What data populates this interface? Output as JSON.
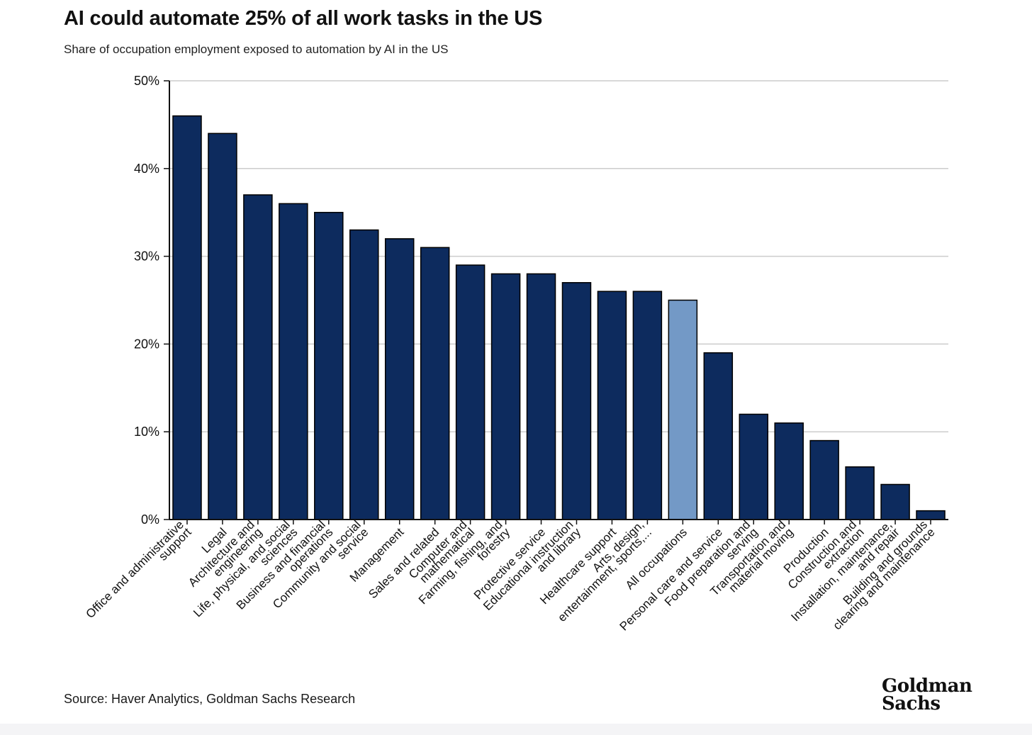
{
  "colors": {
    "bar": "#0d2b5e",
    "highlight": "#7399c6",
    "grid": "#cccccc",
    "axis": "#111111"
  },
  "source": "Source: Haver Analytics, Goldman Sachs Research",
  "logo": {
    "line1": "Goldman",
    "line2": "Sachs"
  },
  "chart_data": {
    "type": "bar",
    "title": "AI could automate 25% of all work tasks in the US",
    "subtitle": "Share of occupation employment exposed to automation by AI in the US",
    "xlabel": "",
    "ylabel": "",
    "ylim": [
      0,
      50
    ],
    "yticks": [
      0,
      10,
      20,
      30,
      40,
      50
    ],
    "ytick_suffix": "%",
    "grid": true,
    "highlight_category": "All occupations",
    "categories": [
      "Office and administrative support",
      "Legal",
      "Architecture and engineering",
      "Life, physical, and social sciences",
      "Business and financial operations",
      "Community and social service",
      "Management",
      "Sales and related",
      "Computer and mathematical",
      "Farming, fishing, and forestry",
      "Protective service",
      "Educational instruction and library",
      "Healthcare support",
      "Arts, design, entertainment, sports,...",
      "All occupations",
      "Personal care and service",
      "Food preparation and serving",
      "Transportation and material moving",
      "Production",
      "Construction and extraction",
      "Installation, maintenance, and repair",
      "Building and grounds clearing and maintenance"
    ],
    "label_lines": [
      [
        "Office and administrative",
        "support"
      ],
      [
        "Legal"
      ],
      [
        "Architecture and",
        "engineering"
      ],
      [
        "Life, physical, and social",
        "sciences"
      ],
      [
        "Business and financial",
        "operations"
      ],
      [
        "Community and social",
        "service"
      ],
      [
        "Management"
      ],
      [
        "Sales and related"
      ],
      [
        "Computer and",
        "mathematical"
      ],
      [
        "Farming, fishing, and",
        "forestry"
      ],
      [
        "Protective service"
      ],
      [
        "Educational instruction",
        "and library"
      ],
      [
        "Healthcare support"
      ],
      [
        "Arts, design,",
        "entertainment, sports,..."
      ],
      [
        "All occupations"
      ],
      [
        "Personal care and service"
      ],
      [
        "Food preparation and",
        "serving"
      ],
      [
        "Transportation and",
        "material moving"
      ],
      [
        "Production"
      ],
      [
        "Construction and",
        "extraction"
      ],
      [
        "Installation, maintenance,",
        "and repair"
      ],
      [
        "Building and grounds",
        "clearing and maintenance"
      ]
    ],
    "values": [
      46,
      44,
      37,
      36,
      35,
      33,
      32,
      31,
      29,
      28,
      28,
      27,
      26,
      26,
      25,
      19,
      12,
      11,
      9,
      6,
      4,
      1
    ]
  }
}
